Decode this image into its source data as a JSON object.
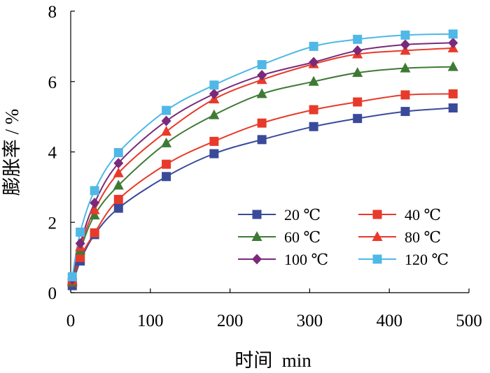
{
  "chart_data": {
    "type": "line",
    "title": "",
    "xlabel": "时间  min",
    "ylabel": "膨胀率 / %",
    "xlim": [
      0,
      500
    ],
    "ylim": [
      0,
      8
    ],
    "xticks": [
      "0",
      "100",
      "200",
      "300",
      "400",
      "500"
    ],
    "yticks": [
      "0",
      "2",
      "4",
      "6",
      "8"
    ],
    "grid": false,
    "legend_position": "center-right",
    "x": [
      2,
      12,
      30,
      60,
      120,
      180,
      240,
      305,
      360,
      420,
      480
    ],
    "series": [
      {
        "name": "20 ℃",
        "color": "#3a4a9a",
        "marker": "square",
        "values": [
          0.2,
          0.9,
          1.65,
          2.4,
          3.3,
          3.95,
          4.35,
          4.72,
          4.95,
          5.15,
          5.25
        ]
      },
      {
        "name": "40 ℃",
        "color": "#e83a2a",
        "marker": "square",
        "values": [
          0.3,
          1.0,
          1.7,
          2.65,
          3.65,
          4.3,
          4.82,
          5.2,
          5.42,
          5.62,
          5.65
        ]
      },
      {
        "name": "60 ℃",
        "color": "#3f7a35",
        "marker": "triangle",
        "values": [
          0.3,
          1.2,
          2.2,
          3.05,
          4.25,
          5.05,
          5.65,
          6.0,
          6.25,
          6.38,
          6.42
        ]
      },
      {
        "name": "80 ℃",
        "color": "#e83a2a",
        "marker": "triangle",
        "values": [
          0.35,
          1.3,
          2.35,
          3.4,
          4.58,
          5.5,
          6.05,
          6.5,
          6.78,
          6.88,
          6.95
        ]
      },
      {
        "name": "100 ℃",
        "color": "#7a2a7a",
        "marker": "diamond",
        "values": [
          0.38,
          1.4,
          2.55,
          3.68,
          4.88,
          5.65,
          6.18,
          6.55,
          6.88,
          7.05,
          7.1
        ]
      },
      {
        "name": "120 ℃",
        "color": "#4fb8e6",
        "marker": "square",
        "values": [
          0.45,
          1.72,
          2.9,
          3.98,
          5.18,
          5.9,
          6.48,
          7.0,
          7.2,
          7.32,
          7.35
        ]
      }
    ]
  }
}
